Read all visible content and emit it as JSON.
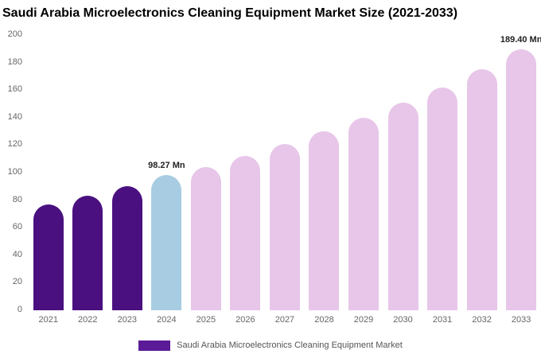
{
  "title": "Saudi Arabia Microelectronics Cleaning Equipment Market Size (2021-2033)",
  "chart_data": {
    "type": "bar",
    "title": "Saudi Arabia Microelectronics Cleaning Equipment Market Size (2021-2033)",
    "categories": [
      "2021",
      "2022",
      "2023",
      "2024",
      "2025",
      "2026",
      "2027",
      "2028",
      "2029",
      "2030",
      "2031",
      "2032",
      "2033"
    ],
    "values": [
      77,
      83,
      90,
      98.27,
      104,
      112,
      121,
      130,
      140,
      151,
      162,
      175,
      189.4
    ],
    "unit": "Mn",
    "ylim": [
      0,
      200
    ],
    "ytick_step": 20,
    "grid": false,
    "annotations": [
      {
        "index": 3,
        "text": "98.27 Mn"
      },
      {
        "index": 12,
        "text": "189.40 Mn"
      }
    ],
    "colors": {
      "historical": "#4a1080",
      "current": "#a8cde2",
      "forecast": "#e7c6e9"
    },
    "bar_roles": [
      "historical",
      "historical",
      "historical",
      "current",
      "forecast",
      "forecast",
      "forecast",
      "forecast",
      "forecast",
      "forecast",
      "forecast",
      "forecast",
      "forecast"
    ],
    "legend": {
      "swatch_color": "#5b1b96",
      "label": "Saudi Arabia Microelectronics Cleaning Equipment Market"
    },
    "legend_position": "bottom-center"
  }
}
